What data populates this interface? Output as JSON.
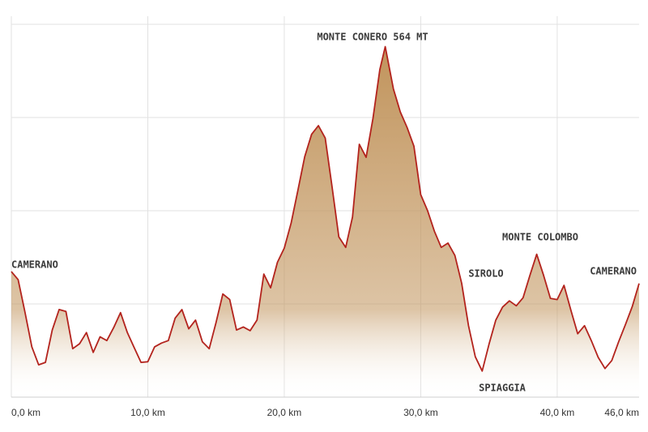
{
  "chart_data": {
    "type": "area",
    "annotations": [
      "CAMERANO",
      "MONTE CONERO 564 MT",
      "SIROLO",
      "MONTE COLOMBO",
      "SPIAGGIA",
      "CAMERANO"
    ],
    "x": [
      0,
      0.5,
      1,
      1.5,
      2,
      2.5,
      3,
      3.5,
      4,
      4.5,
      5,
      5.5,
      6,
      6.5,
      7,
      7.5,
      8,
      8.5,
      9,
      9.5,
      10,
      10.5,
      11,
      11.5,
      12,
      12.5,
      13,
      13.5,
      14,
      14.5,
      15,
      15.5,
      16,
      16.5,
      17,
      17.5,
      18,
      18.5,
      19,
      19.5,
      20,
      20.5,
      21,
      21.5,
      22,
      22.5,
      23,
      23.5,
      24,
      24.5,
      25,
      25.5,
      26,
      26.5,
      27,
      27.4,
      28,
      28.5,
      29,
      29.5,
      30,
      30.5,
      31,
      31.5,
      32,
      32.5,
      33,
      33.5,
      34,
      34.5,
      35,
      35.5,
      36,
      36.5,
      37,
      37.5,
      38,
      38.5,
      39,
      39.5,
      40,
      40.5,
      41,
      41.5,
      42,
      42.5,
      43,
      43.5,
      44,
      44.5,
      45,
      45.5,
      46
    ],
    "values": [
      202,
      189,
      137,
      81,
      52,
      56,
      108,
      141,
      138,
      78,
      86,
      104,
      72,
      97,
      91,
      112,
      136,
      104,
      80,
      56,
      57,
      81,
      87,
      91,
      127,
      141,
      110,
      124,
      89,
      78,
      120,
      166,
      157,
      108,
      113,
      107,
      124,
      198,
      176,
      217,
      240,
      280,
      333,
      387,
      423,
      437,
      417,
      339,
      258,
      241,
      290,
      407,
      386,
      449,
      527,
      564,
      496,
      459,
      434,
      404,
      326,
      300,
      267,
      241,
      248,
      228,
      183,
      115,
      65,
      42,
      85,
      124,
      145,
      155,
      147,
      160,
      196,
      230,
      196,
      159,
      157,
      180,
      140,
      102,
      115,
      91,
      64,
      46,
      59,
      89,
      117,
      146,
      183
    ],
    "line_color": "#b3231d",
    "fill_color": "#c1945c",
    "xlim": [
      0,
      46
    ],
    "ylim": [
      0,
      600
    ],
    "xticks": [
      {
        "value": 0,
        "label": "0,0 km"
      },
      {
        "value": 10,
        "label": "10,0 km"
      },
      {
        "value": 20,
        "label": "20,0 km"
      },
      {
        "value": 30,
        "label": "30,0 km"
      },
      {
        "value": 40,
        "label": "40,0 km"
      },
      {
        "value": 46,
        "label": "46,0 km"
      }
    ],
    "yticks": [
      150,
      300,
      450,
      600
    ],
    "ytick_labels": false,
    "grid": true
  }
}
